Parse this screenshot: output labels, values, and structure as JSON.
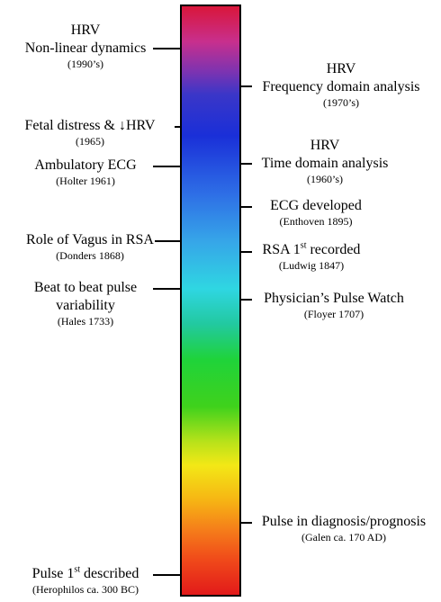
{
  "left": [
    {
      "lines": [
        "HRV",
        "Non-linear dynamics"
      ],
      "sub": "(1990’s)"
    },
    {
      "lines": [
        "Fetal distress & ↓HRV"
      ],
      "sub": "(1965)"
    },
    {
      "lines": [
        "Ambulatory ECG"
      ],
      "sub": "(Holter 1961)"
    },
    {
      "lines": [
        "Role of Vagus in RSA"
      ],
      "sub": "(Donders 1868)"
    },
    {
      "lines": [
        "Beat to beat pulse",
        "variability"
      ],
      "sub": "(Hales 1733)"
    },
    {
      "pre": "Pulse 1",
      "sup": "st",
      "post": " described",
      "sub": "(Herophilos ca. 300 BC)"
    }
  ],
  "right": [
    {
      "lines": [
        "HRV",
        "Frequency domain analysis"
      ],
      "sub": "(1970’s)"
    },
    {
      "lines": [
        "HRV",
        "Time domain analysis"
      ],
      "sub": "(1960’s)"
    },
    {
      "lines": [
        "ECG developed"
      ],
      "sub": "(Enthoven 1895)"
    },
    {
      "pre": "RSA 1",
      "sup": "st",
      "post": " recorded",
      "sub": "(Ludwig 1847)"
    },
    {
      "lines": [
        "Physician’s Pulse Watch"
      ],
      "sub": "(Floyer 1707)"
    },
    {
      "lines": [
        "Pulse in diagnosis/prognosis"
      ],
      "sub": "(Galen ca. 170 AD)"
    }
  ]
}
